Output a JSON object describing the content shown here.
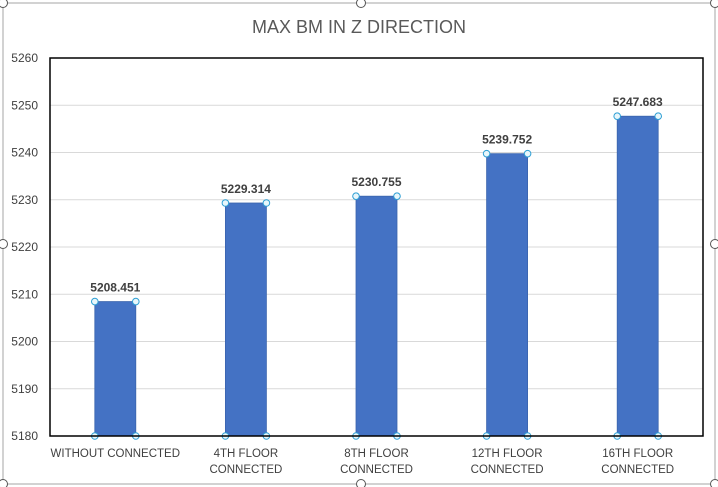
{
  "chart_data": {
    "type": "bar",
    "title": "MAX BM IN  Z  DIRECTION",
    "categories": [
      [
        "WITHOUT CONNECTED"
      ],
      [
        "4TH FLOOR",
        "CONNECTED"
      ],
      [
        "8TH FLOOR",
        "CONNECTED"
      ],
      [
        "12TH FLOOR",
        "CONNECTED"
      ],
      [
        "16TH FLOOR",
        "CONNECTED"
      ]
    ],
    "values": [
      5208.451,
      5229.314,
      5230.755,
      5239.752,
      5247.683
    ],
    "data_labels": [
      "5208.451",
      "5229.314",
      "5230.755",
      "5239.752",
      "5247.683"
    ],
    "yticks": [
      "5180",
      "5190",
      "5200",
      "5210",
      "5220",
      "5230",
      "5240",
      "5250",
      "5260"
    ],
    "ylim": [
      5180,
      5260
    ],
    "xlabel": "",
    "ylabel": "",
    "grid": true,
    "legend": "none",
    "bar_color": "#4472c4",
    "selected_series": true
  }
}
